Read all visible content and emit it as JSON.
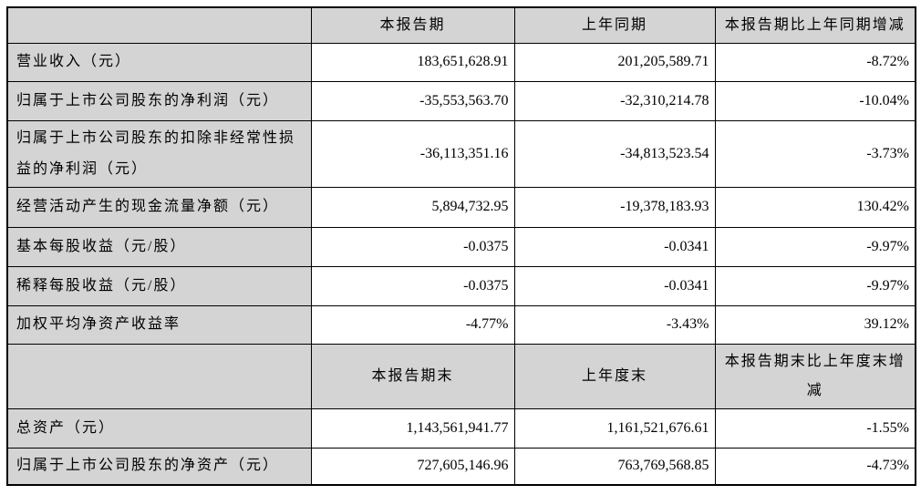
{
  "table": {
    "section1": {
      "headers": {
        "corner": "",
        "current": "本报告期",
        "prior": "上年同期",
        "change": "本报告期比上年同期增减"
      },
      "rows": [
        {
          "label": "营业收入（元）",
          "current": "183,651,628.91",
          "prior": "201,205,589.71",
          "change": "-8.72%"
        },
        {
          "label": "归属于上市公司股东的净利润（元）",
          "current": "-35,553,563.70",
          "prior": "-32,310,214.78",
          "change": "-10.04%"
        },
        {
          "label": "归属于上市公司股东的扣除非经常性损益的净利润（元）",
          "current": "-36,113,351.16",
          "prior": "-34,813,523.54",
          "change": "-3.73%"
        },
        {
          "label": "经营活动产生的现金流量净额（元）",
          "current": "5,894,732.95",
          "prior": "-19,378,183.93",
          "change": "130.42%"
        },
        {
          "label": "基本每股收益（元/股）",
          "current": "-0.0375",
          "prior": "-0.0341",
          "change": "-9.97%"
        },
        {
          "label": "稀释每股收益（元/股）",
          "current": "-0.0375",
          "prior": "-0.0341",
          "change": "-9.97%"
        },
        {
          "label": "加权平均净资产收益率",
          "current": "-4.77%",
          "prior": "-3.43%",
          "change": "39.12%"
        }
      ]
    },
    "section2": {
      "headers": {
        "corner": "",
        "current": "本报告期末",
        "prior": "上年度末",
        "change": "本报告期末比上年度末增减"
      },
      "rows": [
        {
          "label": "总资产（元）",
          "current": "1,143,561,941.77",
          "prior": "1,161,521,676.61",
          "change": "-1.55%"
        },
        {
          "label": "归属于上市公司股东的净资产（元）",
          "current": "727,605,146.96",
          "prior": "763,769,568.85",
          "change": "-4.73%"
        }
      ]
    },
    "colors": {
      "header_bg": "#d4d4d4",
      "label_bg": "#d4d4d4",
      "value_bg": "#ffffff",
      "border": "#000000",
      "text": "#000000"
    }
  }
}
